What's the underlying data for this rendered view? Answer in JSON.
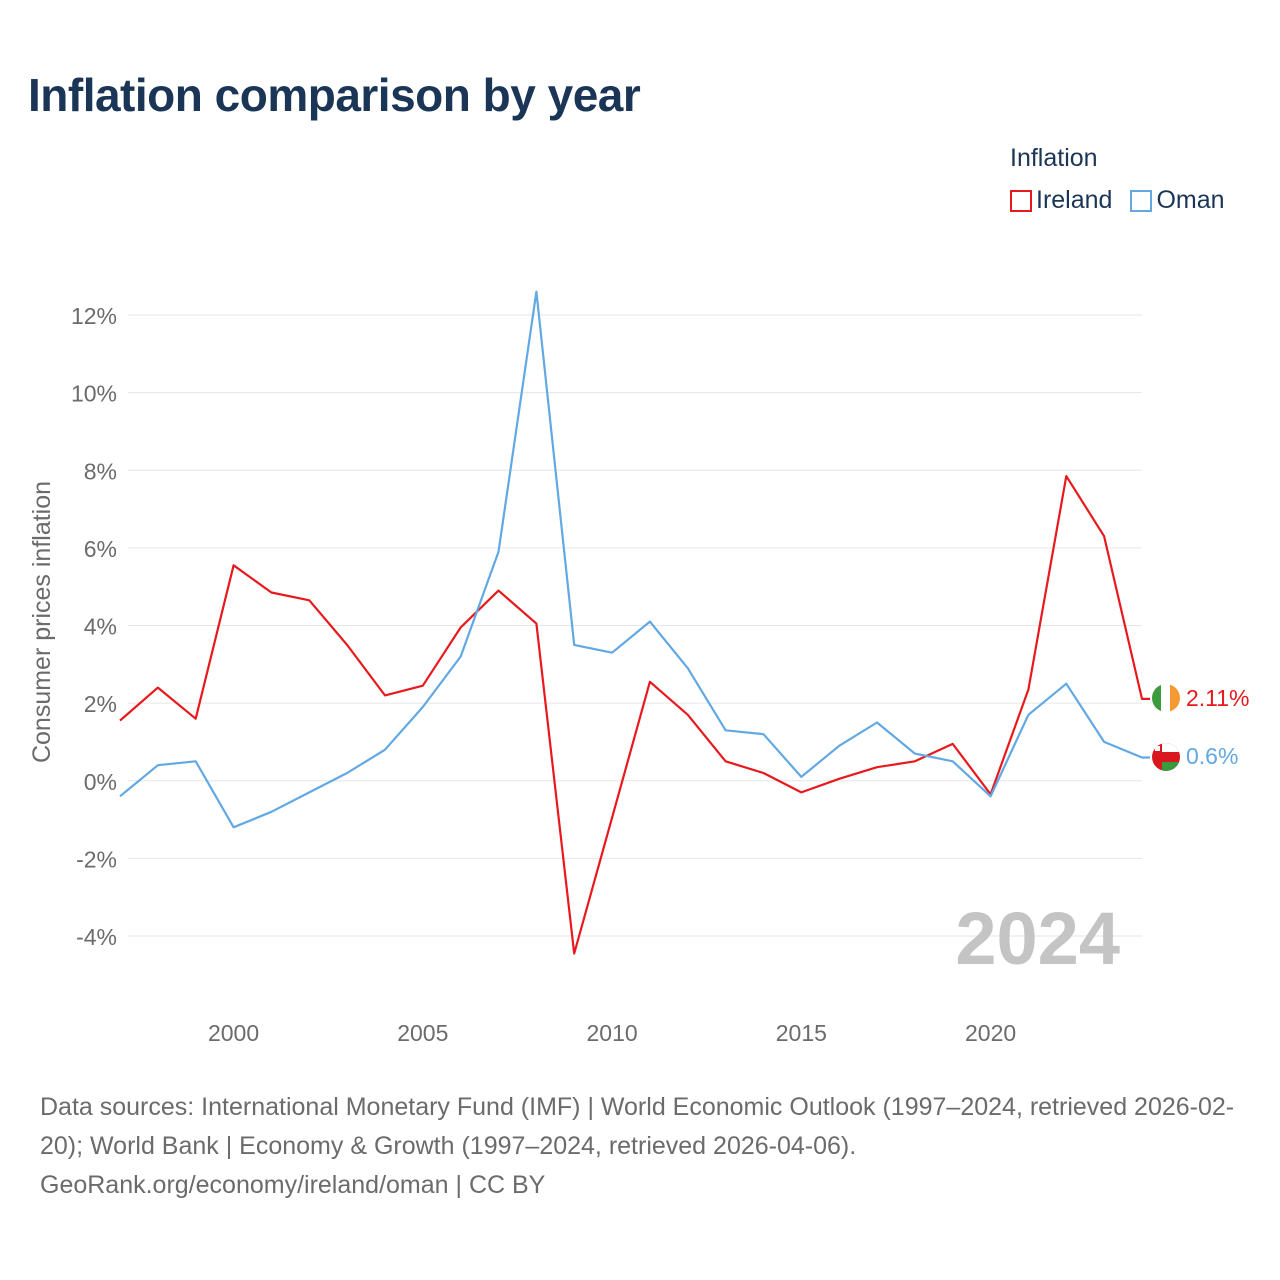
{
  "title": "Inflation comparison by year",
  "legend": {
    "title": "Inflation",
    "items": [
      {
        "name": "Ireland",
        "color": "#e8191d"
      },
      {
        "name": "Oman",
        "color": "#62a8e3"
      }
    ]
  },
  "current_year_label": "2024",
  "end_labels": {
    "ireland": "2.11%",
    "oman": "0.6%"
  },
  "footer": {
    "sources": "Data sources: International Monetary Fund (IMF) | World Economic Outlook (1997–2024, retrieved 2026-02-20); World Bank | Economy & Growth (1997–2024, retrieved 2026-04-06).",
    "link": "GeoRank.org/economy/ireland/oman | CC BY"
  },
  "chart_data": {
    "type": "line",
    "title": "Inflation comparison by year",
    "xlabel": "",
    "ylabel": "Consumer prices inflation",
    "xlim": [
      1997,
      2024
    ],
    "ylim": [
      -5,
      13
    ],
    "x_ticks": [
      2000,
      2005,
      2010,
      2015,
      2020
    ],
    "y_ticks": [
      -4,
      -2,
      0,
      2,
      4,
      6,
      8,
      10,
      12
    ],
    "y_tick_labels": [
      "-4%",
      "-2%",
      "0%",
      "2%",
      "4%",
      "6%",
      "8%",
      "10%",
      "12%"
    ],
    "grid": true,
    "legend_position": "top-right",
    "x": [
      1997,
      1998,
      1999,
      2000,
      2001,
      2002,
      2003,
      2004,
      2005,
      2006,
      2007,
      2008,
      2009,
      2010,
      2011,
      2012,
      2013,
      2014,
      2015,
      2016,
      2017,
      2018,
      2019,
      2020,
      2021,
      2022,
      2023,
      2024
    ],
    "series": [
      {
        "name": "Ireland",
        "color": "#e8191d",
        "values": [
          1.55,
          2.4,
          1.6,
          5.55,
          4.85,
          4.65,
          3.5,
          2.2,
          2.45,
          3.95,
          4.9,
          4.05,
          -4.45,
          -0.95,
          2.55,
          1.7,
          0.5,
          0.2,
          -0.3,
          0.05,
          0.35,
          0.5,
          0.95,
          -0.35,
          2.35,
          7.85,
          6.3,
          2.11
        ]
      },
      {
        "name": "Oman",
        "color": "#62a8e3",
        "values": [
          -0.4,
          0.4,
          0.5,
          -1.2,
          -0.8,
          -0.3,
          0.2,
          0.8,
          1.9,
          3.2,
          5.9,
          12.6,
          3.5,
          3.3,
          4.1,
          2.9,
          1.3,
          1.2,
          0.1,
          0.9,
          1.5,
          0.7,
          0.5,
          -0.4,
          1.7,
          2.5,
          1.0,
          0.6
        ]
      }
    ]
  }
}
